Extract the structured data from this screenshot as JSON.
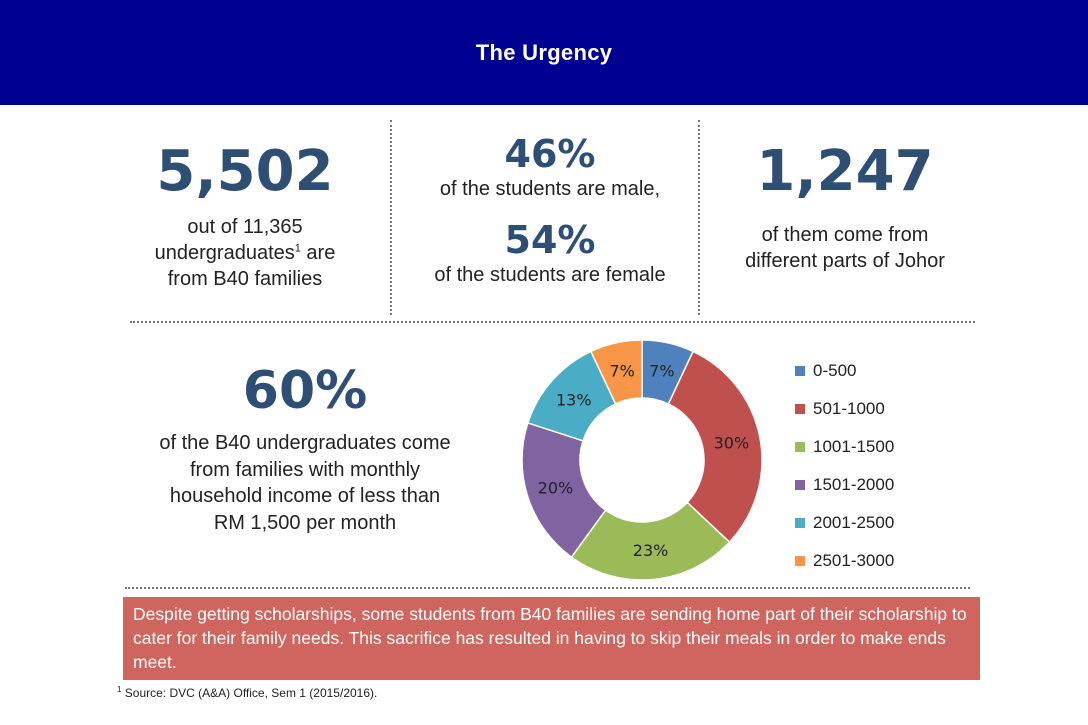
{
  "header": {
    "title": "The Urgency"
  },
  "stats": {
    "undergrad": {
      "value": "5,502",
      "line1": "out of 11,365",
      "line2_main": "undergraduates",
      "line2_sup": "1",
      "line2_end": " are",
      "line3": "from B40 families"
    },
    "gender": {
      "male_value": "46%",
      "male_text": "of the students are male,",
      "female_value": "54%",
      "female_text": "of the students are female"
    },
    "johor": {
      "value": "1,247",
      "line1": "of them come from",
      "line2": "different parts of Johor"
    },
    "income": {
      "value": "60%",
      "line1": "of the B40 undergraduates come",
      "line2": "from families with monthly",
      "line3": "household income of less than",
      "line4": "RM 1,500 per month"
    }
  },
  "chart_data": {
    "type": "pie",
    "categories": [
      "0-500",
      "501-1000",
      "1001-1500",
      "1501-2000",
      "2001-2500",
      "2501-3000"
    ],
    "values": [
      7,
      30,
      23,
      20,
      13,
      7
    ],
    "value_labels": [
      "7%",
      "30%",
      "23%",
      "20%",
      "13%",
      "7%"
    ],
    "colors": [
      "#4f81bd",
      "#c0504d",
      "#9bbb59",
      "#8064a2",
      "#4bacc6",
      "#f79646"
    ],
    "donut": true,
    "legend_position": "right"
  },
  "note": {
    "text": "Despite getting scholarships, some students from B40 families are sending home part of their scholarship to cater for their family needs. This sacrifice has resulted in having to skip their meals in order to make ends meet."
  },
  "source": {
    "sup": "1",
    "text": " Source: DVC (A&A) Office, Sem 1 (2015/2016)."
  }
}
